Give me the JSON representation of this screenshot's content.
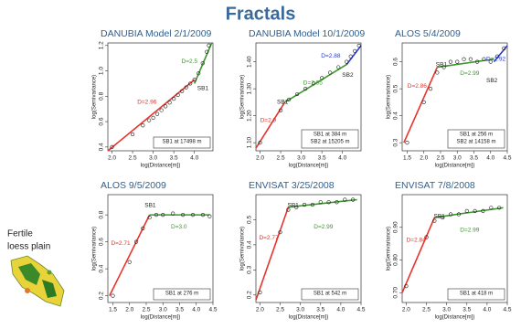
{
  "slide": {
    "title": "Fractals",
    "side_label": [
      "Fertile",
      "loess plain"
    ]
  },
  "chart_data": [
    {
      "type": "scatter",
      "title": "DANUBIA Model 2/1/2009",
      "x_label": "log(Distance[m])",
      "y_label": "log(Semivariance)",
      "xlim": [
        1.9,
        4.45
      ],
      "ylim": [
        0.37,
        1.22
      ],
      "xticks": [
        {
          "value": 2,
          "label": "2.0"
        },
        2.5,
        {
          "value": 3,
          "label": "3.0"
        },
        3.5,
        {
          "value": 4,
          "label": "4.0"
        }
      ],
      "yticks": [
        0.4,
        0.6,
        0.8,
        {
          "value": 1,
          "label": "1.0"
        },
        1.2
      ],
      "series": [
        {
          "style": "points",
          "color": "#222222",
          "x": [
            2.0,
            2.5,
            2.75,
            2.9,
            3.0,
            3.1,
            3.2,
            3.3,
            3.4,
            3.5,
            3.6,
            3.7,
            3.8,
            3.9,
            4.0,
            4.1,
            4.2,
            4.3,
            4.35
          ],
          "values": [
            0.4,
            0.5,
            0.57,
            0.61,
            0.63,
            0.66,
            0.69,
            0.72,
            0.75,
            0.78,
            0.81,
            0.84,
            0.87,
            0.9,
            0.93,
            0.98,
            1.06,
            1.15,
            1.2
          ]
        },
        {
          "style": "line",
          "color": "#e8332b",
          "x": [
            1.9,
            4.0
          ],
          "values": [
            0.37,
            0.93
          ]
        },
        {
          "style": "line",
          "color": "#3a9a2a",
          "x": [
            4.0,
            4.42
          ],
          "values": [
            0.9,
            1.22
          ]
        }
      ],
      "annotations": [
        {
          "text": "D=2.96",
          "color": "#e8332b"
        },
        {
          "text": "D=2.5",
          "color": "#3a9a2a"
        },
        {
          "text": "SB1",
          "color": "#222222"
        }
      ],
      "notes": [
        "SB1 at 17498 m"
      ]
    },
    {
      "type": "scatter",
      "title": "DANUBIA Model 10/1/2009",
      "x_label": "log(Distance[m])",
      "y_label": "log(Semivariance)",
      "xlim": [
        1.9,
        4.45
      ],
      "ylim": [
        1.07,
        1.47
      ],
      "xticks": [
        {
          "value": 2,
          "label": "2.0"
        },
        2.5,
        {
          "value": 3,
          "label": "3.0"
        },
        3.5,
        {
          "value": 4,
          "label": "4.0"
        }
      ],
      "yticks": [
        {
          "value": 1.1,
          "label": "1.10"
        },
        {
          "value": 1.2,
          "label": "1.20"
        },
        {
          "value": 1.3,
          "label": "1.30"
        },
        {
          "value": 1.4,
          "label": "1.40"
        }
      ],
      "series": [
        {
          "style": "points",
          "color": "#222222",
          "x": [
            2.0,
            2.5,
            2.7,
            2.9,
            3.1,
            3.3,
            3.5,
            3.7,
            3.9,
            4.1,
            4.2,
            4.3,
            4.4
          ],
          "values": [
            1.1,
            1.22,
            1.26,
            1.28,
            1.3,
            1.32,
            1.34,
            1.36,
            1.38,
            1.4,
            1.42,
            1.44,
            1.46
          ]
        },
        {
          "style": "line",
          "color": "#e8332b",
          "x": [
            1.9,
            2.6
          ],
          "values": [
            1.08,
            1.25
          ]
        },
        {
          "style": "line",
          "color": "#3a9a2a",
          "x": [
            2.6,
            4.1
          ],
          "values": [
            1.25,
            1.39
          ]
        },
        {
          "style": "line",
          "color": "#2a3ad0",
          "x": [
            4.1,
            4.45
          ],
          "values": [
            1.39,
            1.46
          ]
        }
      ],
      "annotations": [
        {
          "text": "D=2.9",
          "color": "#e8332b"
        },
        {
          "text": "SB1",
          "color": "#222222"
        },
        {
          "text": "D=2.95",
          "color": "#3a9a2a"
        },
        {
          "text": "D=2.88",
          "color": "#2a3ad0"
        },
        {
          "text": "SB2",
          "color": "#222222"
        }
      ],
      "notes": [
        "SB1 at 384 m",
        "SB2 at 15205 m"
      ]
    },
    {
      "type": "scatter",
      "title": "ALOS 5/4/2009",
      "x_label": "log(Distance[m])",
      "y_label": "log(Semivariance)",
      "xlim": [
        1.35,
        4.5
      ],
      "ylim": [
        0.27,
        0.67
      ],
      "xticks": [
        1.5,
        {
          "value": 2,
          "label": "2.0"
        },
        2.5,
        {
          "value": 3,
          "label": "3.0"
        },
        3.5,
        {
          "value": 4,
          "label": "4.0"
        },
        4.5
      ],
      "yticks": [
        0.3,
        0.4,
        0.5,
        0.6
      ],
      "series": [
        {
          "style": "points",
          "color": "#222222",
          "x": [
            1.5,
            2.0,
            2.2,
            2.4,
            2.6,
            2.8,
            3.0,
            3.2,
            3.4,
            3.6,
            3.8,
            4.0,
            4.2,
            4.4
          ],
          "values": [
            0.3,
            0.45,
            0.5,
            0.56,
            0.58,
            0.6,
            0.6,
            0.61,
            0.61,
            0.6,
            0.61,
            0.6,
            0.62,
            0.65
          ]
        },
        {
          "style": "line",
          "color": "#e8332b",
          "x": [
            1.4,
            2.4
          ],
          "values": [
            0.3,
            0.58
          ]
        },
        {
          "style": "line",
          "color": "#3a9a2a",
          "x": [
            2.4,
            4.1
          ],
          "values": [
            0.58,
            0.61
          ]
        },
        {
          "style": "line",
          "color": "#2a3ad0",
          "x": [
            4.1,
            4.5
          ],
          "values": [
            0.6,
            0.66
          ]
        }
      ],
      "annotations": [
        {
          "text": "D=2.86",
          "color": "#e8332b"
        },
        {
          "text": "SB1",
          "color": "#222222"
        },
        {
          "text": "D=2.99",
          "color": "#3a9a2a"
        },
        {
          "text": "D=2.92",
          "color": "#2a3ad0"
        },
        {
          "text": "SB2",
          "color": "#222222"
        }
      ],
      "notes": [
        "SB1 at 256 m",
        "SB2 at 14158 m"
      ]
    },
    {
      "type": "scatter",
      "title": "ALOS 9/5/2009",
      "x_label": "log(Distance[m])",
      "y_label": "log(Semivariance)",
      "xlim": [
        1.35,
        4.5
      ],
      "ylim": [
        0.15,
        0.95
      ],
      "xticks": [
        1.5,
        {
          "value": 2,
          "label": "2.0"
        },
        2.5,
        {
          "value": 3,
          "label": "3.0"
        },
        3.5,
        {
          "value": 4,
          "label": "4.0"
        },
        4.5
      ],
      "yticks": [
        0.2,
        0.4,
        0.6,
        0.8
      ],
      "series": [
        {
          "style": "points",
          "color": "#222222",
          "x": [
            1.5,
            2.0,
            2.2,
            2.4,
            2.6,
            2.8,
            3.0,
            3.3,
            3.6,
            3.9,
            4.2,
            4.4
          ],
          "values": [
            0.2,
            0.45,
            0.6,
            0.7,
            0.78,
            0.8,
            0.8,
            0.81,
            0.8,
            0.8,
            0.8,
            0.79
          ]
        },
        {
          "style": "line",
          "color": "#e8332b",
          "x": [
            1.4,
            2.6
          ],
          "values": [
            0.2,
            0.8
          ]
        },
        {
          "style": "line",
          "color": "#3a9a2a",
          "x": [
            2.6,
            4.4
          ],
          "values": [
            0.8,
            0.8
          ]
        }
      ],
      "annotations": [
        {
          "text": "D=2.71",
          "color": "#e8332b"
        },
        {
          "text": "SB1",
          "color": "#222222"
        },
        {
          "text": "D=3.0",
          "color": "#3a9a2a"
        }
      ],
      "notes": [
        "SB1 at 276 m"
      ]
    },
    {
      "type": "scatter",
      "title": "ENVISAT 3/25/2008",
      "x_label": "log(Distance[m])",
      "y_label": "log(Semivariance)",
      "xlim": [
        1.9,
        4.5
      ],
      "ylim": [
        0.17,
        0.6
      ],
      "xticks": [
        {
          "value": 2,
          "label": "2.0"
        },
        2.5,
        {
          "value": 3,
          "label": "3.0"
        },
        3.5,
        {
          "value": 4,
          "label": "4.0"
        },
        4.5
      ],
      "yticks": [
        0.2,
        0.3,
        0.4,
        0.5
      ],
      "series": [
        {
          "style": "points",
          "color": "#222222",
          "x": [
            2.0,
            2.5,
            2.7,
            2.9,
            3.1,
            3.3,
            3.5,
            3.7,
            3.9,
            4.1,
            4.3
          ],
          "values": [
            0.21,
            0.45,
            0.54,
            0.55,
            0.56,
            0.56,
            0.57,
            0.57,
            0.57,
            0.58,
            0.58
          ]
        },
        {
          "style": "line",
          "color": "#e8332b",
          "x": [
            1.9,
            2.7
          ],
          "values": [
            0.18,
            0.55
          ]
        },
        {
          "style": "line",
          "color": "#3a9a2a",
          "x": [
            2.7,
            4.4
          ],
          "values": [
            0.55,
            0.58
          ]
        }
      ],
      "annotations": [
        {
          "text": "SB1",
          "color": "#222222"
        },
        {
          "text": "D=2.77",
          "color": "#e8332b"
        },
        {
          "text": "D=2.99",
          "color": "#3a9a2a"
        }
      ],
      "notes": [
        "SB1 at 542 m"
      ]
    },
    {
      "type": "scatter",
      "title": "ENVISAT 7/8/2008",
      "x_label": "log(Distance[m])",
      "y_label": "log(Semivariance)",
      "xlim": [
        1.9,
        4.5
      ],
      "ylim": [
        0.67,
        1.0
      ],
      "xticks": [
        {
          "value": 2,
          "label": "2.0"
        },
        2.5,
        {
          "value": 3,
          "label": "3.0"
        },
        3.5,
        {
          "value": 4,
          "label": "4.0"
        },
        4.5
      ],
      "yticks": [
        {
          "value": 0.7,
          "label": "0.70"
        },
        {
          "value": 0.8,
          "label": "0.80"
        },
        {
          "value": 0.9,
          "label": "0.90"
        }
      ],
      "series": [
        {
          "style": "points",
          "color": "#222222",
          "x": [
            2.0,
            2.5,
            2.7,
            2.9,
            3.1,
            3.3,
            3.5,
            3.7,
            3.9,
            4.1,
            4.3
          ],
          "values": [
            0.72,
            0.87,
            0.92,
            0.93,
            0.94,
            0.94,
            0.95,
            0.95,
            0.95,
            0.96,
            0.96
          ]
        },
        {
          "style": "line",
          "color": "#e8332b",
          "x": [
            1.9,
            2.7
          ],
          "values": [
            0.7,
            0.93
          ]
        },
        {
          "style": "line",
          "color": "#3a9a2a",
          "x": [
            2.7,
            4.4
          ],
          "values": [
            0.93,
            0.96
          ]
        }
      ],
      "annotations": [
        {
          "text": "SB1",
          "color": "#222222"
        },
        {
          "text": "D=2.84",
          "color": "#e8332b"
        },
        {
          "text": "D=2.99",
          "color": "#3a9a2a"
        }
      ],
      "notes": [
        "SB1 at 418 m"
      ]
    }
  ]
}
